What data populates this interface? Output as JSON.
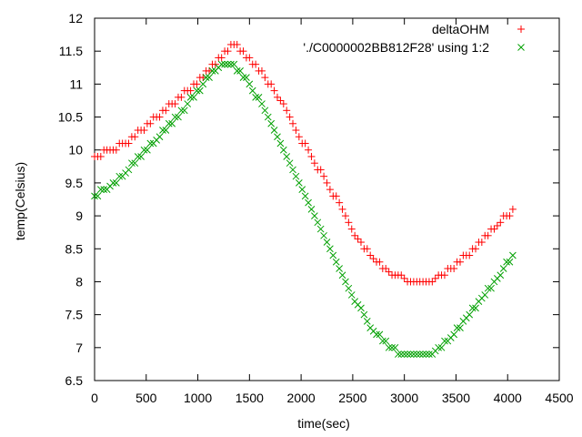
{
  "chart_data": {
    "type": "scatter",
    "xlabel": "time(sec)",
    "ylabel": "temp(Celsius)",
    "xlim": [
      0,
      4500
    ],
    "ylim": [
      6.5,
      12
    ],
    "x_ticks": [
      0,
      500,
      1000,
      1500,
      2000,
      2500,
      3000,
      3500,
      4000,
      4500
    ],
    "y_ticks": [
      6.5,
      7,
      7.5,
      8,
      8.5,
      9,
      9.5,
      10,
      10.5,
      11,
      11.5,
      12
    ],
    "grid": false,
    "legend_position": "top-right",
    "series": [
      {
        "name": "deltaOHM",
        "marker": "plus",
        "color": "#ff0000",
        "points": [
          [
            0,
            9.9
          ],
          [
            150,
            10.0
          ],
          [
            300,
            10.1
          ],
          [
            450,
            10.3
          ],
          [
            600,
            10.5
          ],
          [
            750,
            10.7
          ],
          [
            900,
            10.9
          ],
          [
            1050,
            11.1
          ],
          [
            1200,
            11.4
          ],
          [
            1350,
            11.6
          ],
          [
            1500,
            11.4
          ],
          [
            1650,
            11.1
          ],
          [
            1800,
            10.75
          ],
          [
            1950,
            10.3
          ],
          [
            2100,
            9.9
          ],
          [
            2250,
            9.5
          ],
          [
            2400,
            9.1
          ],
          [
            2550,
            8.65
          ],
          [
            2700,
            8.35
          ],
          [
            2850,
            8.15
          ],
          [
            3000,
            8.05
          ],
          [
            3150,
            8.0
          ],
          [
            3300,
            8.05
          ],
          [
            3450,
            8.2
          ],
          [
            3600,
            8.4
          ],
          [
            3750,
            8.6
          ],
          [
            3900,
            8.85
          ],
          [
            4050,
            9.1
          ]
        ]
      },
      {
        "name": "'./C0000002BB812F28' using 1:2",
        "marker": "cross",
        "color": "#00a000",
        "points": [
          [
            0,
            9.3
          ],
          [
            150,
            9.45
          ],
          [
            300,
            9.65
          ],
          [
            450,
            9.9
          ],
          [
            600,
            10.15
          ],
          [
            750,
            10.4
          ],
          [
            900,
            10.7
          ],
          [
            1050,
            11.0
          ],
          [
            1200,
            11.25
          ],
          [
            1350,
            11.3
          ],
          [
            1500,
            11.0
          ],
          [
            1650,
            10.6
          ],
          [
            1800,
            10.1
          ],
          [
            1950,
            9.6
          ],
          [
            2100,
            9.1
          ],
          [
            2250,
            8.6
          ],
          [
            2400,
            8.1
          ],
          [
            2550,
            7.65
          ],
          [
            2700,
            7.25
          ],
          [
            2850,
            7.0
          ],
          [
            3000,
            6.9
          ],
          [
            3150,
            6.9
          ],
          [
            3300,
            6.95
          ],
          [
            3450,
            7.15
          ],
          [
            3600,
            7.45
          ],
          [
            3750,
            7.75
          ],
          [
            3900,
            8.05
          ],
          [
            4050,
            8.4
          ]
        ]
      }
    ]
  }
}
